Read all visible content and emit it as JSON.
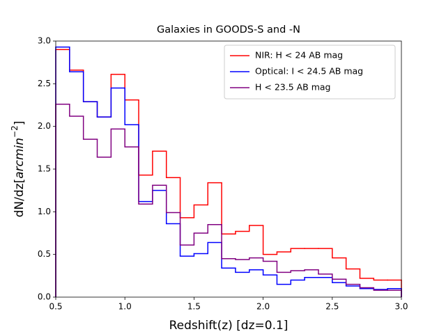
{
  "chart_data": {
    "type": "histogram_step",
    "title": "Galaxies in GOODS-S and -N",
    "xlabel": "Redshift(z) [dz=0.1]",
    "ylabel": [
      "dN/dz[",
      "arcmin",
      "−2",
      "]"
    ],
    "bins": [
      0.5,
      0.6,
      0.7,
      0.8,
      0.9,
      1.0,
      1.1,
      1.2,
      1.3,
      1.4,
      1.5,
      1.6,
      1.7,
      1.8,
      1.9,
      2.0,
      2.1,
      2.2,
      2.3,
      2.4,
      2.5,
      2.6,
      2.7,
      2.8,
      2.9,
      3.0
    ],
    "series": [
      {
        "name": "NIR: H < 24 AB mag",
        "color": "#ff0000",
        "values": [
          2.9,
          2.66,
          2.29,
          2.11,
          2.61,
          2.31,
          1.43,
          1.71,
          1.4,
          0.93,
          1.08,
          1.34,
          0.74,
          0.77,
          0.84,
          0.5,
          0.53,
          0.57,
          0.57,
          0.57,
          0.46,
          0.33,
          0.22,
          0.2,
          0.2
        ]
      },
      {
        "name": "Optical: I < 24.5 AB mag",
        "color": "#0000ff",
        "values": [
          2.93,
          2.64,
          2.29,
          2.11,
          2.45,
          2.02,
          1.12,
          1.25,
          0.86,
          0.48,
          0.51,
          0.64,
          0.34,
          0.29,
          0.32,
          0.26,
          0.15,
          0.2,
          0.23,
          0.23,
          0.17,
          0.13,
          0.1,
          0.09,
          0.1
        ]
      },
      {
        "name": "H < 23.5 AB mag",
        "color": "#800080",
        "values": [
          2.26,
          2.12,
          1.85,
          1.64,
          1.97,
          1.76,
          1.09,
          1.31,
          0.99,
          0.61,
          0.75,
          0.85,
          0.45,
          0.44,
          0.46,
          0.42,
          0.29,
          0.31,
          0.32,
          0.27,
          0.21,
          0.15,
          0.11,
          0.08,
          0.08
        ]
      }
    ],
    "xlim": [
      0.5,
      3.0
    ],
    "ylim": [
      0.0,
      3.0
    ],
    "xticks": [
      {
        "value": 0.5,
        "label": "0.5"
      },
      {
        "value": 1.0,
        "label": "1.0"
      },
      {
        "value": 1.5,
        "label": "1.5"
      },
      {
        "value": 2.0,
        "label": "2.0"
      },
      {
        "value": 2.5,
        "label": "2.5"
      },
      {
        "value": 3.0,
        "label": "3.0"
      }
    ],
    "yticks": [
      {
        "value": 0.0,
        "label": "0.0"
      },
      {
        "value": 0.5,
        "label": "0.5"
      },
      {
        "value": 1.0,
        "label": "1.0"
      },
      {
        "value": 1.5,
        "label": "1.5"
      },
      {
        "value": 2.0,
        "label": "2.0"
      },
      {
        "value": 2.5,
        "label": "2.5"
      },
      {
        "value": 3.0,
        "label": "3.0"
      }
    ],
    "legend": "upper right",
    "grid": false
  }
}
